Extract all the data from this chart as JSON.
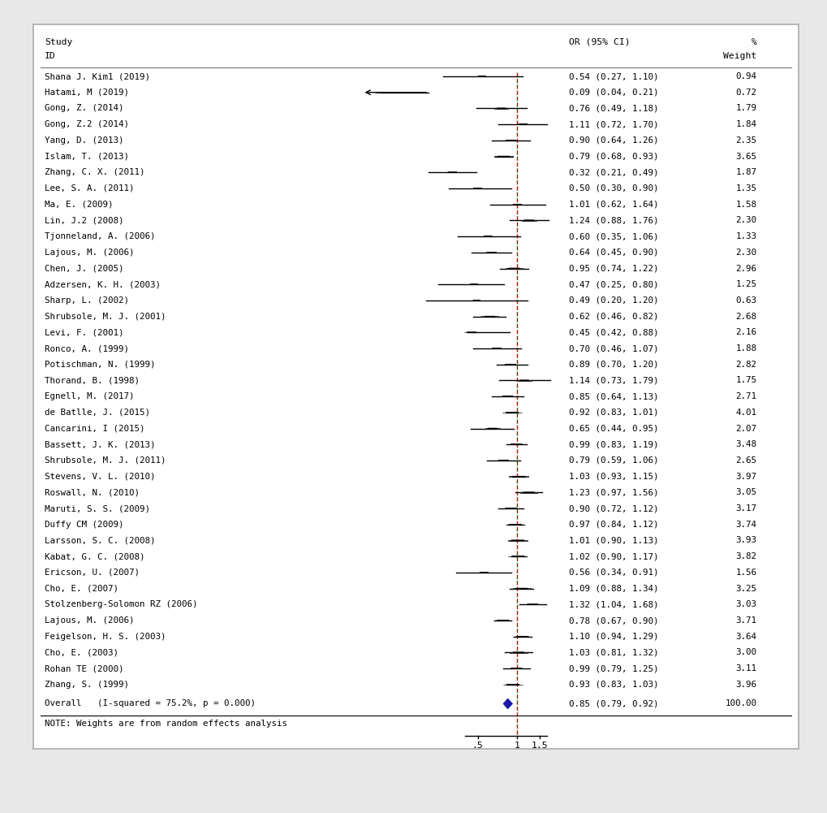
{
  "studies": [
    {
      "label": "Shana J. Kim1 (2019)",
      "or": 0.54,
      "ci_lo": 0.27,
      "ci_hi": 1.1,
      "weight": 0.94
    },
    {
      "label": "Hatami, M (2019)",
      "or": 0.09,
      "ci_lo": 0.04,
      "ci_hi": 0.21,
      "weight": 0.72
    },
    {
      "label": "Gong, Z. (2014)",
      "or": 0.76,
      "ci_lo": 0.49,
      "ci_hi": 1.18,
      "weight": 1.79
    },
    {
      "label": "Gong, Z.2 (2014)",
      "or": 1.11,
      "ci_lo": 0.72,
      "ci_hi": 1.7,
      "weight": 1.84
    },
    {
      "label": "Yang, D. (2013)",
      "or": 0.9,
      "ci_lo": 0.64,
      "ci_hi": 1.26,
      "weight": 2.35
    },
    {
      "label": "Islam, T. (2013)",
      "or": 0.79,
      "ci_lo": 0.68,
      "ci_hi": 0.93,
      "weight": 3.65
    },
    {
      "label": "Zhang, C. X. (2011)",
      "or": 0.32,
      "ci_lo": 0.21,
      "ci_hi": 0.49,
      "weight": 1.87
    },
    {
      "label": "Lee, S. A. (2011)",
      "or": 0.5,
      "ci_lo": 0.3,
      "ci_hi": 0.9,
      "weight": 1.35
    },
    {
      "label": "Ma, E. (2009)",
      "or": 1.01,
      "ci_lo": 0.62,
      "ci_hi": 1.64,
      "weight": 1.58
    },
    {
      "label": "Lin, J.2 (2008)",
      "or": 1.24,
      "ci_lo": 0.88,
      "ci_hi": 1.76,
      "weight": 2.3
    },
    {
      "label": "Tjonneland, A. (2006)",
      "or": 0.6,
      "ci_lo": 0.35,
      "ci_hi": 1.06,
      "weight": 1.33
    },
    {
      "label": "Lajous, M. (2006)",
      "or": 0.64,
      "ci_lo": 0.45,
      "ci_hi": 0.9,
      "weight": 2.3
    },
    {
      "label": "Chen, J. (2005)",
      "or": 0.95,
      "ci_lo": 0.74,
      "ci_hi": 1.22,
      "weight": 2.96
    },
    {
      "label": "Adzersen, K. H. (2003)",
      "or": 0.47,
      "ci_lo": 0.25,
      "ci_hi": 0.8,
      "weight": 1.25
    },
    {
      "label": "Sharp, L. (2002)",
      "or": 0.49,
      "ci_lo": 0.2,
      "ci_hi": 1.2,
      "weight": 0.63
    },
    {
      "label": "Shrubsole, M. J. (2001)",
      "or": 0.62,
      "ci_lo": 0.46,
      "ci_hi": 0.82,
      "weight": 2.68
    },
    {
      "label": "Levi, F. (2001)",
      "or": 0.45,
      "ci_lo": 0.42,
      "ci_hi": 0.88,
      "weight": 2.16
    },
    {
      "label": "Ronco, A. (1999)",
      "or": 0.7,
      "ci_lo": 0.46,
      "ci_hi": 1.07,
      "weight": 1.88
    },
    {
      "label": "Potischman, N. (1999)",
      "or": 0.89,
      "ci_lo": 0.7,
      "ci_hi": 1.2,
      "weight": 2.82
    },
    {
      "label": "Thorand, B. (1998)",
      "or": 1.14,
      "ci_lo": 0.73,
      "ci_hi": 1.79,
      "weight": 1.75
    },
    {
      "label": "Egnell, M. (2017)",
      "or": 0.85,
      "ci_lo": 0.64,
      "ci_hi": 1.13,
      "weight": 2.71
    },
    {
      "label": "de Batlle, J. (2015)",
      "or": 0.92,
      "ci_lo": 0.83,
      "ci_hi": 1.01,
      "weight": 4.01
    },
    {
      "label": "Cancarini, I (2015)",
      "or": 0.65,
      "ci_lo": 0.44,
      "ci_hi": 0.95,
      "weight": 2.07
    },
    {
      "label": "Bassett, J. K. (2013)",
      "or": 0.99,
      "ci_lo": 0.83,
      "ci_hi": 1.19,
      "weight": 3.48
    },
    {
      "label": "Shrubsole, M. J. (2011)",
      "or": 0.79,
      "ci_lo": 0.59,
      "ci_hi": 1.06,
      "weight": 2.65
    },
    {
      "label": "Stevens, V. L. (2010)",
      "or": 1.03,
      "ci_lo": 0.93,
      "ci_hi": 1.15,
      "weight": 3.97
    },
    {
      "label": "Roswall, N. (2010)",
      "or": 1.23,
      "ci_lo": 0.97,
      "ci_hi": 1.56,
      "weight": 3.05
    },
    {
      "label": "Maruti, S. S. (2009)",
      "or": 0.9,
      "ci_lo": 0.72,
      "ci_hi": 1.12,
      "weight": 3.17
    },
    {
      "label": "Duffy CM (2009)",
      "or": 0.97,
      "ci_lo": 0.84,
      "ci_hi": 1.12,
      "weight": 3.74
    },
    {
      "label": "Larsson, S. C. (2008)",
      "or": 1.01,
      "ci_lo": 0.9,
      "ci_hi": 1.13,
      "weight": 3.93
    },
    {
      "label": "Kabat, G. C. (2008)",
      "or": 1.02,
      "ci_lo": 0.9,
      "ci_hi": 1.17,
      "weight": 3.82
    },
    {
      "label": "Ericson, U. (2007)",
      "or": 0.56,
      "ci_lo": 0.34,
      "ci_hi": 0.91,
      "weight": 1.56
    },
    {
      "label": "Cho, E. (2007)",
      "or": 1.09,
      "ci_lo": 0.88,
      "ci_hi": 1.34,
      "weight": 3.25
    },
    {
      "label": "Stolzenberg-Solomon RZ (2006)",
      "or": 1.32,
      "ci_lo": 1.04,
      "ci_hi": 1.68,
      "weight": 3.03
    },
    {
      "label": "Lajous, M. (2006)",
      "or": 0.78,
      "ci_lo": 0.67,
      "ci_hi": 0.9,
      "weight": 3.71
    },
    {
      "label": "Feigelson, H. S. (2003)",
      "or": 1.1,
      "ci_lo": 0.94,
      "ci_hi": 1.29,
      "weight": 3.64
    },
    {
      "label": "Cho, E. (2003)",
      "or": 1.03,
      "ci_lo": 0.81,
      "ci_hi": 1.32,
      "weight": 3.0
    },
    {
      "label": "Rohan TE (2000)",
      "or": 0.99,
      "ci_lo": 0.79,
      "ci_hi": 1.25,
      "weight": 3.11
    },
    {
      "label": "Zhang, S. (1999)",
      "or": 0.93,
      "ci_lo": 0.83,
      "ci_hi": 1.03,
      "weight": 3.96
    }
  ],
  "overall": {
    "label": "Overall   (I-squared = 75.2%, p = 0.000)",
    "or": 0.85,
    "ci_lo": 0.79,
    "ci_hi": 0.92,
    "weight": 100.0
  },
  "note": "NOTE: Weights are from random effects analysis",
  "bg_color": "#e8e8e8",
  "plot_bg_color": "#ffffff",
  "box_color": "#b0b0b0",
  "diamond_color": "#1a1aaa",
  "ref_line_color": "#cc0000",
  "font_size": 7.8,
  "header_font_size": 8.2,
  "plot_or_min": 0.07,
  "plot_or_max": 2.05
}
